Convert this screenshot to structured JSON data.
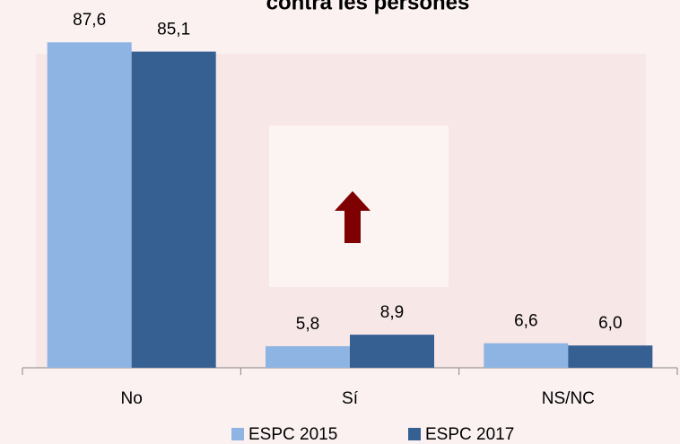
{
  "chart_data": {
    "type": "bar",
    "title": "contra les persones",
    "categories": [
      "No",
      "Sí",
      "NS/NC"
    ],
    "series": [
      {
        "name": "ESPC 2015",
        "color": "#8db4e2",
        "values": [
          87.6,
          5.8,
          6.6
        ],
        "value_labels": [
          "87,6",
          "5,8",
          "6,6"
        ]
      },
      {
        "name": "ESPC 2017",
        "color": "#366092",
        "values": [
          85.1,
          8.9,
          6.0
        ],
        "value_labels": [
          "85,1",
          "8,9",
          "6,0"
        ]
      }
    ],
    "ylim": [
      0,
      99
    ],
    "legend": "bottom"
  }
}
